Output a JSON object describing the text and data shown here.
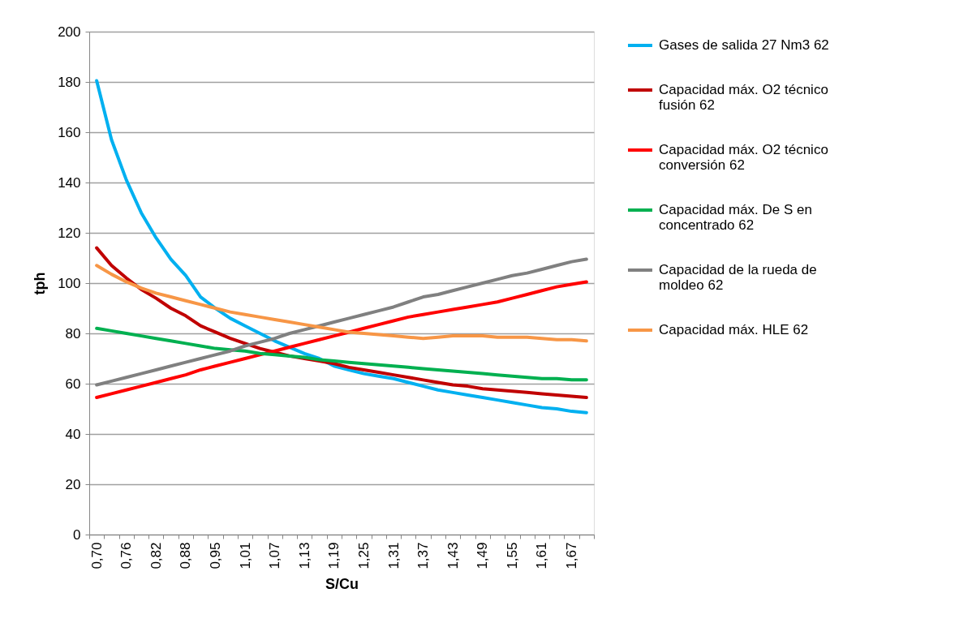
{
  "chart_data": {
    "type": "line",
    "xlabel": "S/Cu",
    "ylabel": "tph",
    "categories": [
      "0,70",
      null,
      "0,76",
      null,
      "0,82",
      null,
      "0,88",
      null,
      "0,95",
      null,
      "1,01",
      null,
      "1,07",
      null,
      "1,13",
      null,
      "1,19",
      null,
      "1,25",
      null,
      "1,31",
      null,
      "1,37",
      null,
      "1,43",
      null,
      "1,49",
      null,
      "1,55",
      null,
      "1,61",
      null,
      "1,67",
      null
    ],
    "ylim": [
      0,
      200
    ],
    "yticks": [
      0,
      20,
      40,
      60,
      80,
      100,
      120,
      140,
      160,
      180,
      200
    ],
    "grid": "y",
    "legend": "right",
    "marker": "none",
    "line_style": "solid",
    "series": [
      {
        "name": "Gases de salida 27 Nm3 62",
        "color": "#00b0f0",
        "values": [
          180.5,
          157,
          141,
          128,
          118,
          109.5,
          103,
          94.5,
          90,
          86,
          83,
          80,
          77,
          74.5,
          72,
          70,
          67,
          65.5,
          64,
          63,
          62,
          60.5,
          59,
          57.5,
          56.5,
          55.5,
          54.5,
          53.5,
          52.5,
          51.5,
          50.5,
          50,
          49,
          48.5
        ]
      },
      {
        "name": "Capacidad máx. O2 técnico fusión 62",
        "color": "#c00000",
        "values": [
          114,
          107,
          102,
          97.5,
          94,
          90,
          87,
          83,
          80.5,
          78,
          76,
          74,
          72.5,
          71,
          70,
          69,
          68,
          66.5,
          65.5,
          64.5,
          63.5,
          62.5,
          61.5,
          60.5,
          59.5,
          59,
          58,
          57.5,
          57,
          56.5,
          56,
          55.5,
          55,
          54.5
        ]
      },
      {
        "name": "Capacidad máx. O2 técnico conversión 62",
        "color": "#ff0000",
        "values": [
          54.5,
          56,
          57.5,
          59,
          60.5,
          62,
          63.5,
          65.5,
          67,
          68.5,
          70,
          71.5,
          73,
          74.5,
          76,
          77.5,
          79,
          80.5,
          82,
          83.5,
          85,
          86.5,
          87.5,
          88.5,
          89.5,
          90.5,
          91.5,
          92.5,
          94,
          95.5,
          97,
          98.5,
          99.5,
          100.5
        ]
      },
      {
        "name": "Capacidad máx. De S en concentrado 62",
        "color": "#00b050",
        "values": [
          82,
          81,
          80,
          79,
          78,
          77,
          76,
          75,
          74,
          73.5,
          73,
          72,
          71.5,
          71,
          70.5,
          69.5,
          69,
          68.5,
          68,
          67.5,
          67,
          66.5,
          66,
          65.5,
          65,
          64.5,
          64,
          63.5,
          63,
          62.5,
          62,
          62,
          61.5,
          61.5
        ]
      },
      {
        "name": "Capacidad de la rueda de moldeo 62",
        "color": "#808080",
        "values": [
          59.5,
          61,
          62.5,
          64,
          65.5,
          67,
          68.5,
          70,
          71.5,
          73,
          75,
          76.5,
          78,
          80,
          81.5,
          83,
          84.5,
          86,
          87.5,
          89,
          90.5,
          92.5,
          94.5,
          95.5,
          97,
          98.5,
          100,
          101.5,
          103,
          104,
          105.5,
          107,
          108.5,
          109.5
        ]
      },
      {
        "name": "Capacidad máx. HLE 62",
        "color": "#f79646",
        "values": [
          107,
          103.5,
          100.5,
          98,
          96,
          94.5,
          93,
          91.5,
          90,
          88.5,
          87.5,
          86.5,
          85.5,
          84.5,
          83.5,
          82.5,
          81.5,
          80.5,
          80,
          79.5,
          79,
          78.5,
          78,
          78.5,
          79,
          79,
          79,
          78.5,
          78.5,
          78.5,
          78,
          77.5,
          77.5,
          77
        ]
      }
    ]
  }
}
